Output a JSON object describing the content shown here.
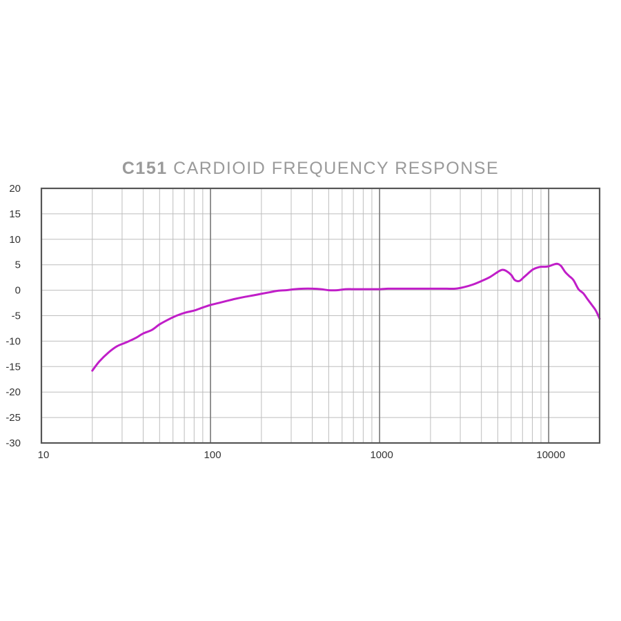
{
  "title": {
    "strong": "C151",
    "rest": "CARDIOID FREQUENCY RESPONSE"
  },
  "colors": {
    "curve": "#c01ec8",
    "grid": "#bdbdbd",
    "grid_major": "#777777",
    "frame": "#555555",
    "title": "#9a9a9a"
  },
  "chart_data": {
    "type": "line",
    "title": "C151 CARDIOID FREQUENCY RESPONSE",
    "xlabel": "",
    "ylabel": "",
    "x_scale": "log",
    "xlim": [
      10,
      20000
    ],
    "ylim": [
      -30,
      20
    ],
    "x_ticks": [
      10,
      100,
      1000,
      10000
    ],
    "x_tick_labels": [
      "10",
      "100",
      "1000",
      "10000"
    ],
    "y_ticks": [
      20,
      15,
      10,
      5,
      0,
      -5,
      -10,
      -15,
      -20,
      -25,
      -30
    ],
    "y_tick_labels": [
      "20",
      "15",
      "10",
      "5",
      "0",
      "-5",
      "-10",
      "-15",
      "-20",
      "-25",
      "-30"
    ],
    "grid": true,
    "series": [
      {
        "x": [
          20,
          22,
          25,
          28,
          32,
          36,
          40,
          45,
          50,
          56,
          63,
          71,
          80,
          90,
          100,
          112,
          125,
          140,
          160,
          180,
          200,
          224,
          250,
          280,
          315,
          355,
          400,
          450,
          500,
          560,
          630,
          710,
          800,
          900,
          1000,
          1120,
          1250,
          1400,
          1600,
          1800,
          2000,
          2240,
          2500,
          2800,
          3150,
          3550,
          4000,
          4500,
          5000,
          5300,
          5600,
          6000,
          6300,
          6700,
          7100,
          7500,
          8000,
          8500,
          9000,
          9500,
          10000,
          10600,
          11200,
          11800,
          12500,
          13200,
          14000,
          15000,
          16000,
          17000,
          18000,
          19000,
          20000
        ],
        "values": [
          -15.8,
          -14.0,
          -12.2,
          -11.0,
          -10.2,
          -9.4,
          -8.5,
          -7.8,
          -6.7,
          -5.8,
          -5.0,
          -4.4,
          -4.0,
          -3.4,
          -2.9,
          -2.5,
          -2.1,
          -1.7,
          -1.3,
          -1.0,
          -0.7,
          -0.4,
          -0.1,
          0.0,
          0.2,
          0.3,
          0.3,
          0.2,
          0.0,
          0.0,
          0.2,
          0.2,
          0.2,
          0.2,
          0.2,
          0.3,
          0.3,
          0.3,
          0.3,
          0.3,
          0.3,
          0.3,
          0.3,
          0.3,
          0.6,
          1.1,
          1.8,
          2.6,
          3.6,
          4.0,
          3.8,
          3.0,
          2.0,
          1.8,
          2.5,
          3.2,
          4.0,
          4.4,
          4.6,
          4.6,
          4.7,
          5.0,
          5.2,
          4.8,
          3.6,
          2.8,
          2.0,
          0.2,
          -0.6,
          -1.8,
          -2.9,
          -4.0,
          -5.6
        ]
      }
    ]
  }
}
